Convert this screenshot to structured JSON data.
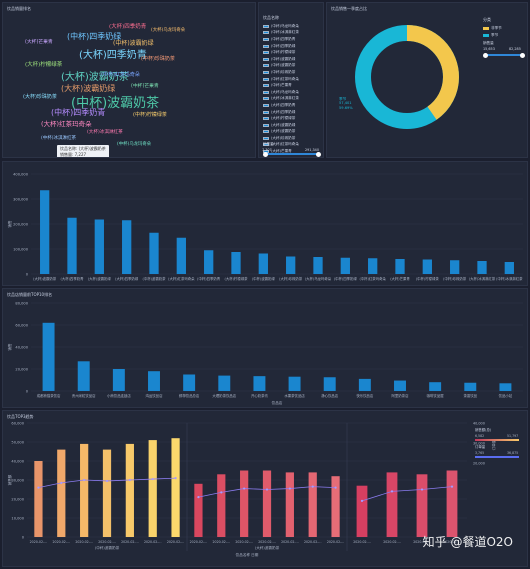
{
  "panels": {
    "wordcloud": {
      "title": "饮品销量排名"
    },
    "donut": {
      "title": "饮品销售一季度占比"
    },
    "bar1": {
      "title": ""
    },
    "bar2": {
      "title": "饮品店销量前TOP10排名"
    },
    "combo": {
      "title": "饮品TOP3趋势"
    }
  },
  "wordcloud": {
    "words": [
      {
        "t": "(中杯)波霸奶茶",
        "c": "#4ec9a8"
      },
      {
        "t": "(大杯)波霸奶茶",
        "c": "#5fd3c4"
      },
      {
        "t": "(大杯)四季奶青",
        "c": "#7bd7ff"
      },
      {
        "t": "(中杯)四季奶青",
        "c": "#b58cff"
      },
      {
        "t": "(大杯)波霸奶绿",
        "c": "#e59c6a"
      },
      {
        "t": "(中杯)四季奶绿",
        "c": "#6fc6ff"
      },
      {
        "t": "(大杯)红茶玛奇朵",
        "c": "#ff88c2"
      },
      {
        "t": "(中杯)波霸奶绿",
        "c": "#f5c26b"
      },
      {
        "t": "(大杯)四季奶青",
        "c": "#ff6f91"
      },
      {
        "t": "(大杯)柠檬绿茶",
        "c": "#9fe27d"
      },
      {
        "t": "(中杯)红茶玛奇朵",
        "c": "#7aa6ff"
      },
      {
        "t": "(中杯)柠檬绿茶",
        "c": "#ffd36f"
      },
      {
        "t": "(大杯)珍珠奶茶",
        "c": "#8ae0ff"
      },
      {
        "t": "(中杯)珍珠奶茶",
        "c": "#ff9f7a"
      },
      {
        "t": "(大杯)芒果青",
        "c": "#c9a7ff"
      },
      {
        "t": "(中杯)芒果青",
        "c": "#7de0b2"
      },
      {
        "t": "(大杯)冰淇淋红茶",
        "c": "#ff7ab0"
      },
      {
        "t": "(中杯)冰淇淋红茶",
        "c": "#9ac8ff"
      },
      {
        "t": "(大杯)乌龙玛奇朵",
        "c": "#ffc36f"
      },
      {
        "t": "(中杯)乌龙玛奇朵",
        "c": "#72e6c9"
      }
    ],
    "tooltip": {
      "line1": "饮品名称: (大杯)波霸奶茶",
      "line2": "销售量: 7,227"
    }
  },
  "donut": {
    "legend_title": "饮品名称",
    "legend": [
      "(中杯)乌龙玛奇朵",
      "(中杯)冰淇淋红茶",
      "(中杯)四季奶青",
      "(中杯)四季奶绿",
      "(中杯)柠檬绿茶",
      "(中杯)波霸奶绿",
      "(中杯)波霸奶茶",
      "(中杯)珍珠奶茶",
      "(中杯)红茶玛奇朵",
      "(中杯)芒果青",
      "(大杯)乌龙玛奇朵",
      "(大杯)冰淇淋红茶",
      "(大杯)四季奶青",
      "(大杯)四季奶绿",
      "(大杯)柠檬绿茶",
      "(大杯)波霸奶绿",
      "(大杯)波霸奶茶",
      "(大杯)珍珠奶茶",
      "(大杯)红茶玛奇朵",
      "(大杯)芒果青"
    ],
    "slider1_label": "销售量",
    "slider1_min": "7,307",
    "slider1_max": "291,340",
    "right_title": "分类",
    "right_items": [
      "非季节",
      "季节"
    ],
    "slider2_label": "销售量",
    "slider2_min": "15,653",
    "slider2_max": "82,285",
    "labels": {
      "a_name": "非季节",
      "a_val": "38,771",
      "a_pct": "40.31%",
      "b_name": "季节",
      "b_val": "57,401",
      "b_pct": "59.69%"
    },
    "colors": {
      "a": "#f3c74c",
      "b": "#19b7d6"
    }
  },
  "chart_data": [
    {
      "type": "bar",
      "title": "",
      "ylabel": "销售",
      "ylim": [
        0,
        400000
      ],
      "yticks": [
        "400,000",
        "300,000",
        "200,000",
        "100,000",
        "0"
      ],
      "categories": [
        "(大杯)波霸奶茶",
        "(大杯)四季奶青",
        "(大杯)波霸奶绿",
        "(大杯)四季奶绿",
        "(中杯)波霸奶茶",
        "(大杯)红茶玛奇朵",
        "(中杯)四季奶青",
        "(大杯)柠檬绿茶",
        "(中杯)波霸奶绿",
        "(大杯)珍珠奶茶",
        "(大杯)乌龙玛奇朵",
        "(中杯)四季奶绿",
        "(中杯)红茶玛奇朵",
        "(大杯)芒果青",
        "(中杯)柠檬绿茶",
        "(中杯)珍珠奶茶",
        "(大杯)冰淇淋红茶",
        "(中杯)冰淇淋红茶"
      ],
      "values": [
        335000,
        225000,
        218000,
        215000,
        165000,
        145000,
        95000,
        88000,
        82000,
        70000,
        68000,
        65000,
        63000,
        60000,
        58000,
        55000,
        52000,
        48000
      ]
    },
    {
      "type": "bar",
      "title": "饮品店销量前TOP10排名",
      "ylabel": "销售",
      "xlabel": "饮品店",
      "ylim": [
        0,
        80000
      ],
      "yticks": [
        "80,000",
        "60,000",
        "40,000",
        "20,000",
        "0"
      ],
      "categories": [
        "成都熊猫茶饮店",
        "贵州米粒饮品店",
        "小熊饮品连锁店",
        "鸿运饮品店",
        "鲜榨饮品总店",
        "大理奶茶饮品店",
        "开心奶茶坊",
        "水果茶饮品店",
        "静心饮品店",
        "快乐饮品店",
        "阿里奶茶店",
        "咖啡饮品屋",
        "茶香饮品",
        "饮品小站"
      ],
      "values": [
        62000,
        27000,
        20000,
        18000,
        15000,
        14000,
        13500,
        13000,
        12500,
        11000,
        9500,
        8000,
        7500,
        7000
      ]
    },
    {
      "type": "bar",
      "title": "饮品TOP3趋势",
      "ylabel": "销售额",
      "xlabel": "饮品名称 日期",
      "ylim": [
        0,
        60000
      ],
      "yticks": [
        "60,000",
        "50,000",
        "40,000",
        "30,000",
        "20,000",
        "10,000",
        "0"
      ],
      "y2ticks": [
        "40,000",
        "30,000",
        "20,000"
      ],
      "y2label": "订单量",
      "groups": [
        {
          "name": "(中杯)波霸奶茶",
          "dates": [
            "2020-02-...",
            "2020-02-...",
            "2020-02-...",
            "2020-02-...",
            "2020-02-...",
            "2020-02-...",
            "2020-02-..."
          ],
          "values": [
            40000,
            46000,
            49000,
            46000,
            49000,
            51000,
            52000
          ],
          "line": [
            26000,
            28500,
            30000,
            29500,
            30000,
            30500,
            31000
          ]
        },
        {
          "name": "(大杯)波霸奶茶",
          "dates": [
            "2020-02-...",
            "2020-02-...",
            "2020-02-...",
            "2020-02-...",
            "2020-02-...",
            "2020-02-...",
            "2020-02-..."
          ],
          "values": [
            28000,
            33000,
            35000,
            35000,
            34000,
            34000,
            32000
          ],
          "line": [
            21000,
            23500,
            25500,
            25000,
            25500,
            26500,
            26000
          ]
        },
        {
          "name": "",
          "dates": [
            "2020-02-...",
            "2020-02-...",
            "2020-02-...",
            "2020-02-..."
          ],
          "values": [
            27000,
            34000,
            33000,
            35000
          ],
          "line": [
            19000,
            24000,
            25000,
            26500
          ]
        }
      ],
      "legend_title1": "销售额(总)",
      "legend1_min": "6,582",
      "legend1_max": "51,797",
      "legend_title2": "订单量",
      "legend2_min": "3,765",
      "legend2_max": "36,875"
    }
  ],
  "watermark": "知乎 @餐道O2O"
}
